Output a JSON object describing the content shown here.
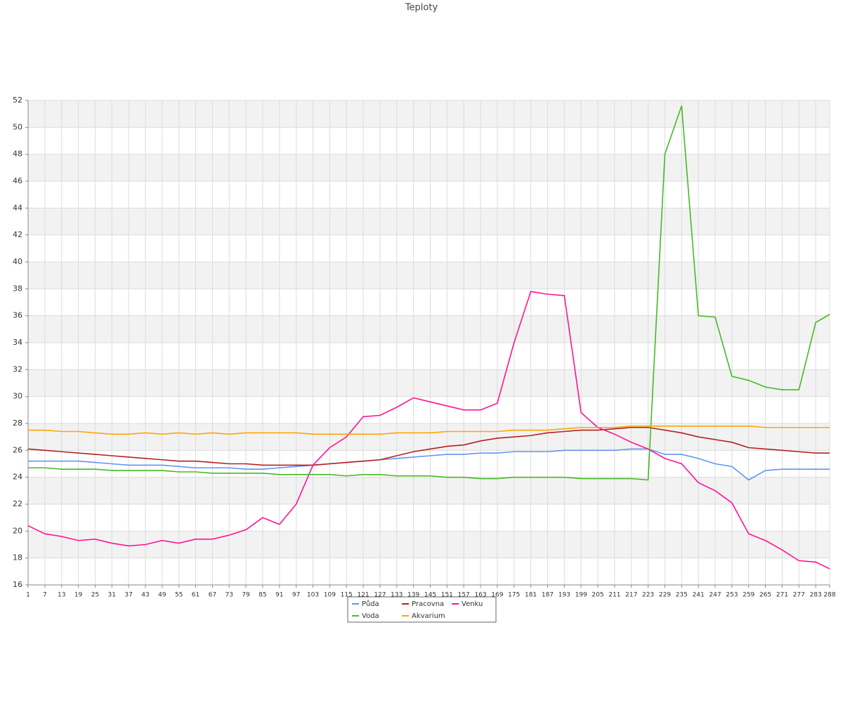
{
  "chart_data": {
    "type": "line",
    "title": "Teploty",
    "x": [
      1,
      7,
      13,
      19,
      25,
      31,
      37,
      43,
      49,
      55,
      61,
      67,
      73,
      79,
      85,
      91,
      97,
      103,
      109,
      115,
      121,
      127,
      133,
      139,
      145,
      151,
      157,
      163,
      169,
      175,
      181,
      187,
      193,
      199,
      205,
      211,
      217,
      223,
      229,
      235,
      241,
      247,
      253,
      259,
      265,
      271,
      277,
      283,
      288
    ],
    "xlim": [
      1,
      288
    ],
    "ylim": [
      16,
      52
    ],
    "yticks": [
      16,
      18,
      20,
      22,
      24,
      26,
      28,
      30,
      32,
      34,
      36,
      38,
      40,
      42,
      44,
      46,
      48,
      50,
      52
    ],
    "grid": true,
    "legend": "bottom",
    "series": [
      {
        "name": "Půda",
        "color": "#6495ed",
        "values": [
          25.2,
          25.2,
          25.2,
          25.2,
          25.1,
          25.0,
          24.9,
          24.9,
          24.9,
          24.8,
          24.7,
          24.7,
          24.7,
          24.6,
          24.6,
          24.7,
          24.8,
          24.9,
          25.0,
          25.1,
          25.2,
          25.3,
          25.4,
          25.5,
          25.6,
          25.7,
          25.7,
          25.8,
          25.8,
          25.9,
          25.9,
          25.9,
          26.0,
          26.0,
          26.0,
          26.0,
          26.1,
          26.1,
          25.7,
          25.7,
          25.4,
          25.0,
          24.8,
          23.8,
          24.5,
          24.6,
          24.6,
          24.6,
          24.6
        ]
      },
      {
        "name": "Pracovna",
        "color": "#b22222",
        "values": [
          26.1,
          26.0,
          25.9,
          25.8,
          25.7,
          25.6,
          25.5,
          25.4,
          25.3,
          25.2,
          25.2,
          25.1,
          25.0,
          25.0,
          24.9,
          24.9,
          24.9,
          24.9,
          25.0,
          25.1,
          25.2,
          25.3,
          25.6,
          25.9,
          26.1,
          26.3,
          26.4,
          26.7,
          26.9,
          27.0,
          27.1,
          27.3,
          27.4,
          27.5,
          27.5,
          27.6,
          27.7,
          27.7,
          27.5,
          27.3,
          27.0,
          26.8,
          26.6,
          26.2,
          26.1,
          26.0,
          25.9,
          25.8,
          25.8
        ]
      },
      {
        "name": "Venku",
        "color": "#ff1493",
        "values": [
          20.4,
          19.8,
          19.6,
          19.3,
          19.4,
          19.1,
          18.9,
          19.0,
          19.3,
          19.1,
          19.4,
          19.4,
          19.7,
          20.1,
          21.0,
          20.5,
          22.0,
          24.9,
          26.2,
          27.0,
          28.5,
          28.6,
          29.2,
          29.9,
          29.6,
          29.3,
          29.0,
          29.0,
          29.5,
          34.0,
          37.8,
          37.6,
          37.5,
          28.8,
          27.7,
          27.2,
          26.6,
          26.1,
          25.4,
          25.0,
          23.6,
          23.0,
          22.1,
          19.8,
          19.3,
          18.6,
          17.8,
          17.7,
          17.2
        ]
      },
      {
        "name": "Voda",
        "color": "#44bb22",
        "values": [
          24.7,
          24.7,
          24.6,
          24.6,
          24.6,
          24.5,
          24.5,
          24.5,
          24.5,
          24.4,
          24.4,
          24.3,
          24.3,
          24.3,
          24.3,
          24.2,
          24.2,
          24.2,
          24.2,
          24.1,
          24.2,
          24.2,
          24.1,
          24.1,
          24.1,
          24.0,
          24.0,
          23.9,
          23.9,
          24.0,
          24.0,
          24.0,
          24.0,
          23.9,
          23.9,
          23.9,
          23.9,
          23.8,
          48.0,
          51.6,
          36.0,
          35.9,
          31.5,
          31.2,
          30.7,
          30.5,
          30.5,
          35.5,
          36.1
        ]
      },
      {
        "name": "Akvarium",
        "color": "#ffa500",
        "values": [
          27.5,
          27.5,
          27.4,
          27.4,
          27.3,
          27.2,
          27.2,
          27.3,
          27.2,
          27.3,
          27.2,
          27.3,
          27.2,
          27.3,
          27.3,
          27.3,
          27.3,
          27.2,
          27.2,
          27.2,
          27.2,
          27.2,
          27.3,
          27.3,
          27.3,
          27.4,
          27.4,
          27.4,
          27.4,
          27.5,
          27.5,
          27.5,
          27.6,
          27.7,
          27.7,
          27.7,
          27.8,
          27.8,
          27.8,
          27.8,
          27.8,
          27.8,
          27.8,
          27.8,
          27.7,
          27.7,
          27.7,
          27.7,
          27.7
        ]
      }
    ]
  }
}
